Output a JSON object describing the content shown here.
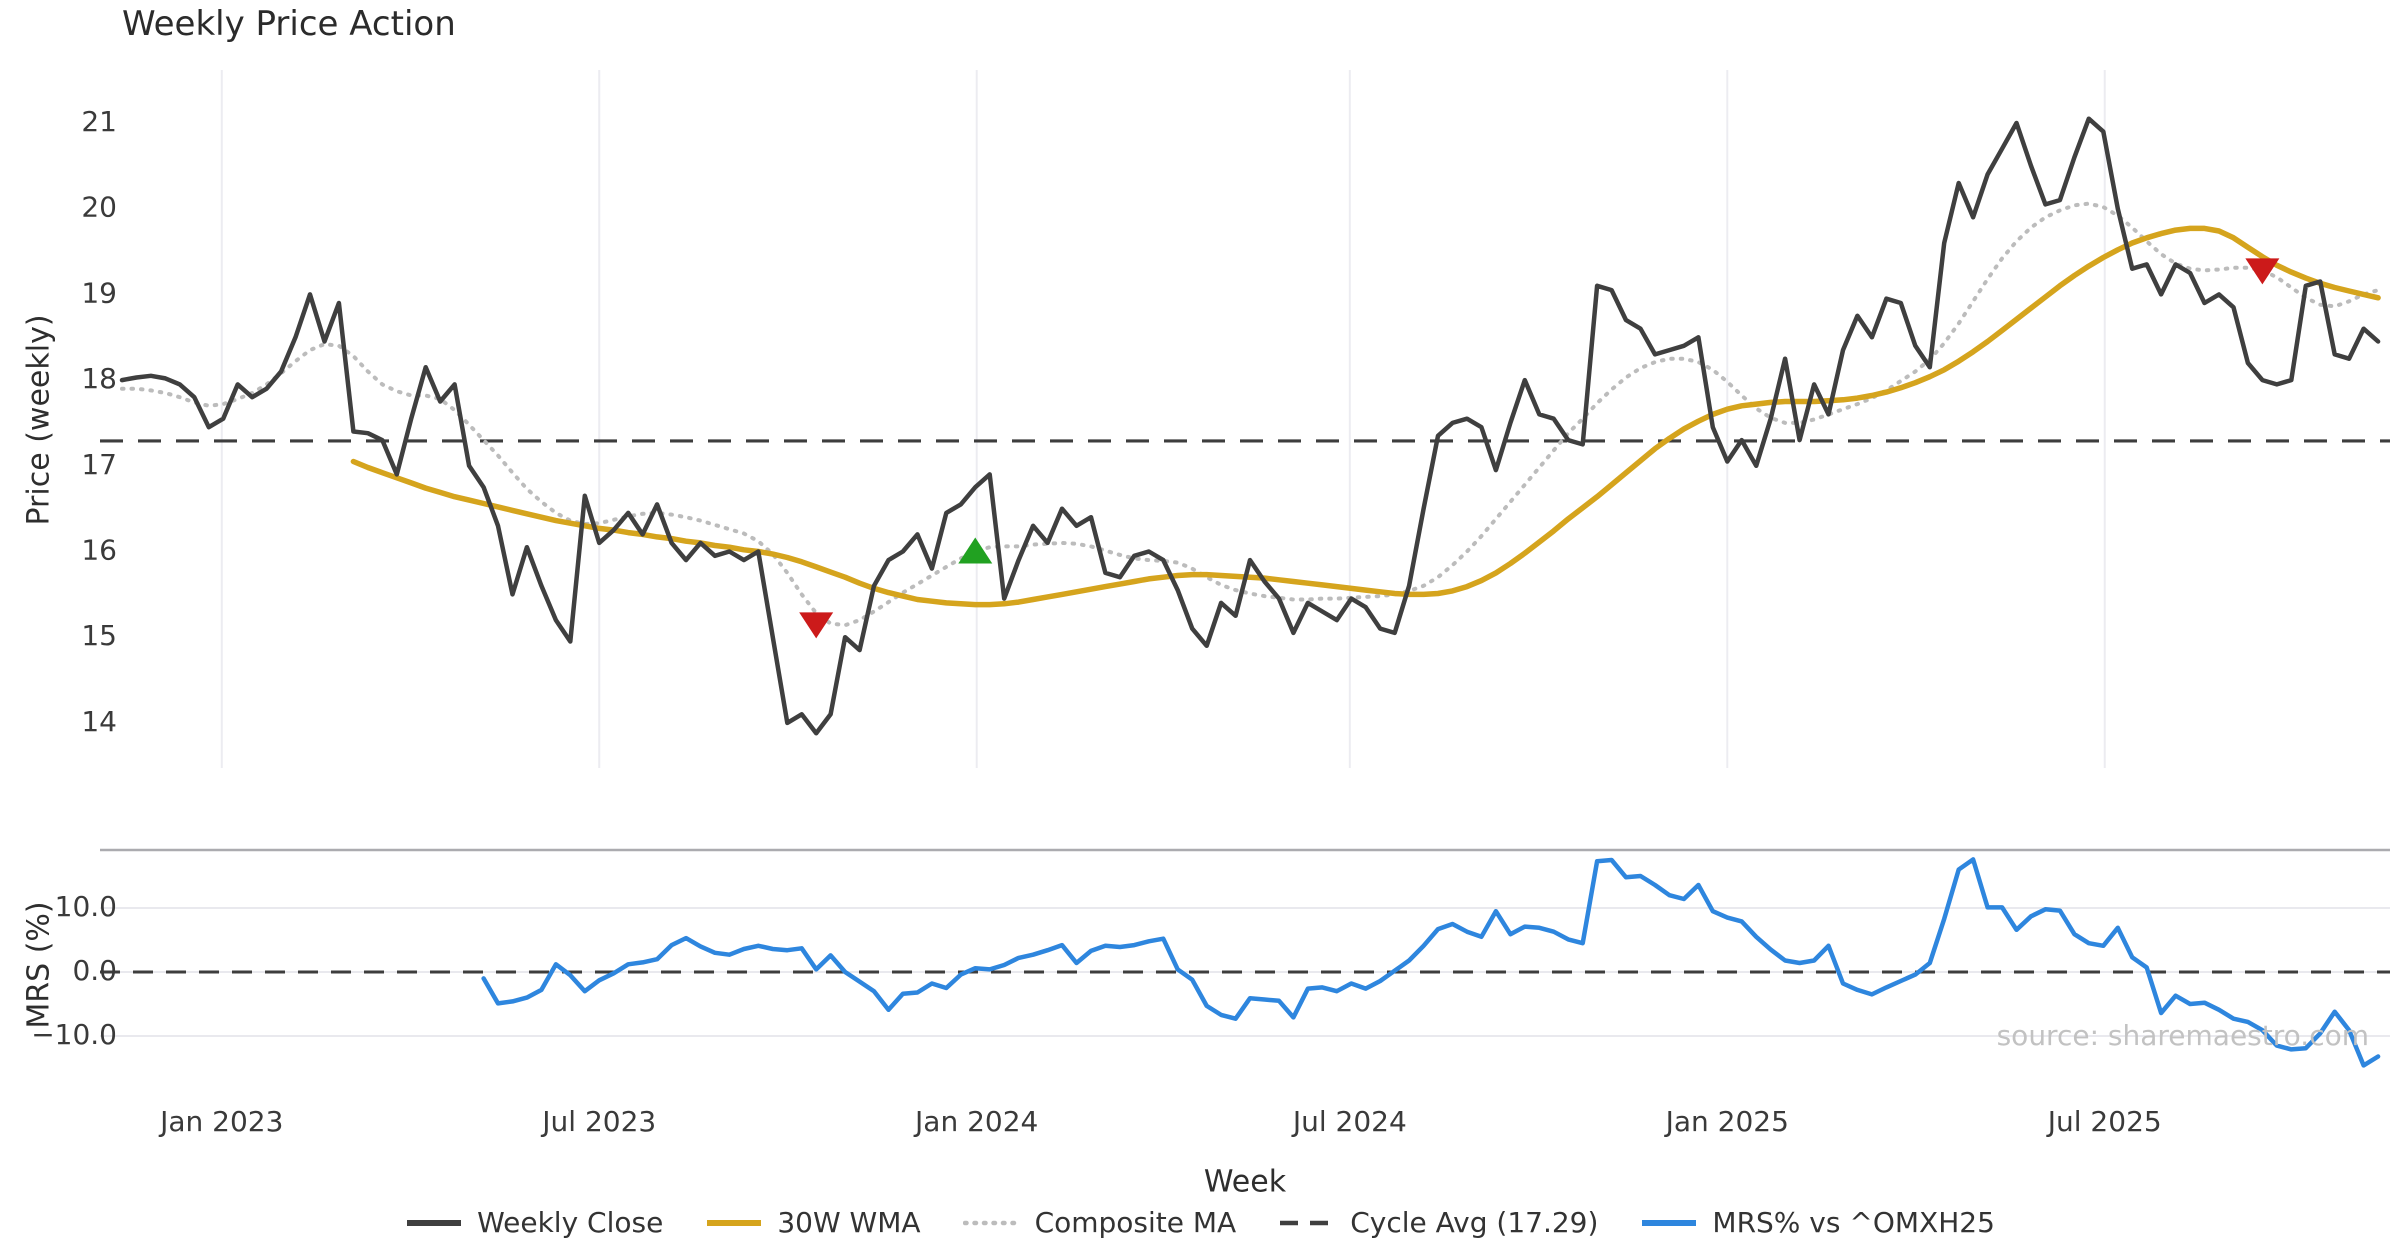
{
  "title": "Weekly Price Action",
  "source_note": "source: sharemaestro.com",
  "axes": {
    "x_label": "Week",
    "price_axis_label": "Price (weekly)",
    "mrs_axis_label": "MRS (%)",
    "price_ticks": [
      "21",
      "20",
      "19",
      "18",
      "17",
      "16",
      "15",
      "14"
    ],
    "price_tick_values": [
      21,
      20,
      19,
      18,
      17,
      16,
      15,
      14
    ],
    "mrs_ticks": [
      "10.0",
      "0.0",
      "−10.0"
    ],
    "mrs_tick_values": [
      10,
      0,
      -10
    ],
    "x_ticks": [
      "Jan 2023",
      "Jul 2023",
      "Jan 2024",
      "Jul 2024",
      "Jan 2025",
      "Jul 2025"
    ],
    "x_tick_weeks": [
      6.9,
      33.0,
      59.1,
      84.9,
      111.0,
      137.1
    ]
  },
  "legend": [
    {
      "label": "Weekly Close",
      "swatch": "solid",
      "color": "#3f3f3f"
    },
    {
      "label": "30W WMA",
      "swatch": "solid",
      "color": "#d5a41d"
    },
    {
      "label": "Composite MA",
      "swatch": "dotted",
      "color": "#bcbcbc"
    },
    {
      "label": "Cycle Avg (17.29)",
      "swatch": "dashed",
      "color": "#3f3f3f"
    },
    {
      "label": "MRS% vs ^OMXH25",
      "swatch": "solid",
      "color": "#2e86de"
    }
  ],
  "chart_data": {
    "type": "line",
    "title": "Weekly Price Action",
    "xlabel": "Week",
    "x_unit": "week index (weekly data, ~Nov 2022 to ~Nov 2025)",
    "grid": "vertical month gridlines on price panel, horizontal gridlines on MRS panel",
    "legend_position": "bottom center",
    "panels": [
      {
        "name": "price",
        "ylabel": "Price (weekly)",
        "ylim": [
          13.5,
          21.6
        ],
        "yticks": [
          21,
          20,
          19,
          18,
          17,
          16,
          15,
          14
        ],
        "cycle_avg": 17.29,
        "series": [
          {
            "name": "Weekly Close",
            "color": "#3f3f3f",
            "style": "solid",
            "start_week": 0,
            "values": [
              18.0,
              18.03,
              18.05,
              18.02,
              17.95,
              17.8,
              17.45,
              17.55,
              17.95,
              17.8,
              17.9,
              18.1,
              18.5,
              19.0,
              18.45,
              18.9,
              17.4,
              17.38,
              17.3,
              16.9,
              17.55,
              18.15,
              17.75,
              17.95,
              17.0,
              16.75,
              16.3,
              15.5,
              16.05,
              15.6,
              15.2,
              14.95,
              16.65,
              16.1,
              16.25,
              16.45,
              16.2,
              16.55,
              16.1,
              15.9,
              16.1,
              15.95,
              16.0,
              15.9,
              16.0,
              15.0,
              14.0,
              14.1,
              13.88,
              14.1,
              15.0,
              14.85,
              15.6,
              15.9,
              16.0,
              16.2,
              15.8,
              16.45,
              16.55,
              16.75,
              16.9,
              15.45,
              15.9,
              16.3,
              16.1,
              16.5,
              16.3,
              16.4,
              15.75,
              15.7,
              15.95,
              16.0,
              15.9,
              15.55,
              15.1,
              14.9,
              15.4,
              15.25,
              15.9,
              15.65,
              15.45,
              15.05,
              15.4,
              15.3,
              15.2,
              15.45,
              15.35,
              15.1,
              15.05,
              15.6,
              16.5,
              17.35,
              17.5,
              17.55,
              17.45,
              16.95,
              17.5,
              18.0,
              17.6,
              17.55,
              17.3,
              17.25,
              19.1,
              19.05,
              18.7,
              18.6,
              18.3,
              18.35,
              18.4,
              18.5,
              17.45,
              17.05,
              17.3,
              17.0,
              17.55,
              18.25,
              17.3,
              17.95,
              17.6,
              18.35,
              18.75,
              18.5,
              18.95,
              18.9,
              18.4,
              18.15,
              19.6,
              20.3,
              19.9,
              20.4,
              20.7,
              21.0,
              20.5,
              20.05,
              20.1,
              20.6,
              21.05,
              20.9,
              20.0,
              19.3,
              19.35,
              19.0,
              19.35,
              19.25,
              18.9,
              19.0,
              18.85,
              18.2,
              18.0,
              17.95,
              18.0,
              19.1,
              19.15,
              18.3,
              18.25,
              18.6,
              18.45
            ]
          },
          {
            "name": "30W WMA",
            "color": "#d5a41d",
            "style": "solid",
            "start_week": 16,
            "values": [
              17.05,
              16.98,
              16.92,
              16.86,
              16.8,
              16.74,
              16.69,
              16.64,
              16.6,
              16.56,
              16.52,
              16.48,
              16.44,
              16.4,
              16.36,
              16.33,
              16.3,
              16.27,
              16.25,
              16.22,
              16.2,
              16.17,
              16.15,
              16.12,
              16.1,
              16.07,
              16.05,
              16.02,
              16.0,
              15.97,
              15.93,
              15.88,
              15.82,
              15.76,
              15.7,
              15.63,
              15.57,
              15.52,
              15.48,
              15.44,
              15.42,
              15.4,
              15.39,
              15.38,
              15.38,
              15.39,
              15.41,
              15.44,
              15.47,
              15.5,
              15.53,
              15.56,
              15.59,
              15.62,
              15.65,
              15.68,
              15.7,
              15.72,
              15.73,
              15.73,
              15.72,
              15.71,
              15.7,
              15.69,
              15.67,
              15.65,
              15.63,
              15.61,
              15.59,
              15.57,
              15.55,
              15.53,
              15.51,
              15.5,
              15.5,
              15.51,
              15.54,
              15.59,
              15.66,
              15.75,
              15.86,
              15.98,
              16.11,
              16.24,
              16.38,
              16.51,
              16.64,
              16.78,
              16.92,
              17.06,
              17.2,
              17.32,
              17.43,
              17.52,
              17.6,
              17.66,
              17.7,
              17.72,
              17.74,
              17.75,
              17.75,
              17.75,
              17.76,
              17.77,
              17.79,
              17.82,
              17.86,
              17.91,
              17.97,
              18.04,
              18.12,
              18.22,
              18.33,
              18.45,
              18.58,
              18.71,
              18.84,
              18.97,
              19.1,
              19.22,
              19.33,
              19.43,
              19.52,
              19.6,
              19.66,
              19.71,
              19.75,
              19.77,
              19.77,
              19.74,
              19.66,
              19.55,
              19.44,
              19.34,
              19.26,
              19.19,
              19.13,
              19.08,
              19.04,
              19.0,
              18.96
            ]
          },
          {
            "name": "Composite MA",
            "color": "#bcbcbc",
            "style": "dotted",
            "start_week": 0,
            "values": [
              17.9,
              17.9,
              17.88,
              17.85,
              17.8,
              17.74,
              17.7,
              17.72,
              17.78,
              17.85,
              17.95,
              18.08,
              18.22,
              18.35,
              18.42,
              18.4,
              18.28,
              18.1,
              17.95,
              17.87,
              17.82,
              17.82,
              17.78,
              17.65,
              17.48,
              17.3,
              17.12,
              16.92,
              16.73,
              16.58,
              16.45,
              16.36,
              16.32,
              16.33,
              16.37,
              16.41,
              16.44,
              16.45,
              16.43,
              16.4,
              16.36,
              16.31,
              16.26,
              16.21,
              16.12,
              15.97,
              15.75,
              15.5,
              15.28,
              15.16,
              15.14,
              15.2,
              15.3,
              15.41,
              15.52,
              15.62,
              15.72,
              15.82,
              15.92,
              16.0,
              16.05,
              16.06,
              16.06,
              16.08,
              16.09,
              16.1,
              16.09,
              16.06,
              16.01,
              15.96,
              15.92,
              15.9,
              15.89,
              15.87,
              15.8,
              15.7,
              15.61,
              15.55,
              15.51,
              15.48,
              15.46,
              15.44,
              15.44,
              15.45,
              15.45,
              15.46,
              15.47,
              15.48,
              15.5,
              15.54,
              15.6,
              15.7,
              15.84,
              16.0,
              16.18,
              16.38,
              16.58,
              16.78,
              16.98,
              17.18,
              17.38,
              17.55,
              17.73,
              17.89,
              18.03,
              18.14,
              18.21,
              18.25,
              18.25,
              18.21,
              18.12,
              17.98,
              17.82,
              17.67,
              17.56,
              17.5,
              17.5,
              17.54,
              17.6,
              17.66,
              17.72,
              17.79,
              17.88,
              17.99,
              18.1,
              18.24,
              18.43,
              18.66,
              18.92,
              19.18,
              19.42,
              19.62,
              19.78,
              19.9,
              19.98,
              20.04,
              20.06,
              20.02,
              19.92,
              19.78,
              19.62,
              19.47,
              19.36,
              19.3,
              19.28,
              19.29,
              19.31,
              19.31,
              19.28,
              19.2,
              19.08,
              18.96,
              18.88,
              18.86,
              18.92,
              19.0,
              19.05
            ]
          }
        ],
        "cycle_avg_line": {
          "name": "Cycle Avg (17.29)",
          "value": 17.29,
          "color": "#3d3d3d",
          "style": "dashed"
        },
        "markers": [
          {
            "week": 48,
            "price": 15.15,
            "shape": "triangle-down",
            "color": "#cc1a1a",
            "meaning": "sell signal"
          },
          {
            "week": 59,
            "price": 16.0,
            "shape": "triangle-up",
            "color": "#21a121",
            "meaning": "buy signal"
          },
          {
            "week": 148,
            "price": 19.28,
            "shape": "triangle-down",
            "color": "#cc1a1a",
            "meaning": "sell signal"
          }
        ]
      },
      {
        "name": "mrs",
        "ylabel": "MRS (%)",
        "ylim": [
          -16.5,
          19.0
        ],
        "yticks": [
          10,
          0,
          -10
        ],
        "zero_line_dashed": true,
        "series": [
          {
            "name": "MRS% vs ^OMXH25",
            "color": "#2e86de",
            "style": "solid",
            "start_week": 25,
            "values": [
              -1.0,
              -4.9,
              -4.6,
              -4.0,
              -2.8,
              1.2,
              -0.5,
              -3.0,
              -1.3,
              -0.2,
              1.2,
              1.5,
              2.0,
              4.2,
              5.3,
              4.0,
              3.0,
              2.7,
              3.6,
              4.1,
              3.6,
              3.4,
              3.7,
              0.4,
              2.6,
              0.0,
              -1.5,
              -3.0,
              -5.9,
              -3.4,
              -3.2,
              -1.8,
              -2.5,
              -0.4,
              0.6,
              0.4,
              1.1,
              2.2,
              2.7,
              3.4,
              4.2,
              1.4,
              3.3,
              4.1,
              3.9,
              4.2,
              4.8,
              5.2,
              0.4,
              -1.2,
              -5.3,
              -6.7,
              -7.3,
              -4.1,
              -4.3,
              -4.5,
              -7.1,
              -2.6,
              -2.4,
              -3.0,
              -1.8,
              -2.6,
              -1.4,
              0.2,
              1.8,
              4.1,
              6.7,
              7.5,
              6.3,
              5.5,
              9.5,
              5.9,
              7.1,
              6.9,
              6.3,
              5.1,
              4.5,
              17.3,
              17.5,
              14.8,
              15.0,
              13.6,
              12.0,
              11.4,
              13.6,
              9.5,
              8.5,
              7.9,
              5.5,
              3.5,
              1.8,
              1.4,
              1.8,
              4.1,
              -1.8,
              -2.8,
              -3.5,
              -2.4,
              -1.4,
              -0.4,
              1.4,
              8.3,
              16.0,
              17.6,
              10.1,
              10.1,
              6.6,
              8.7,
              9.8,
              9.6,
              5.9,
              4.5,
              4.1,
              6.9,
              2.3,
              0.7,
              -6.4,
              -3.7,
              -5.0,
              -4.8,
              -5.9,
              -7.3,
              -7.8,
              -9.1,
              -11.5,
              -12.1,
              -11.9,
              -9.6,
              -6.2,
              -9.1,
              -14.6,
              -13.2
            ]
          }
        ]
      }
    ],
    "x_ticks": [
      {
        "week": 6.9,
        "label": "Jan 2023"
      },
      {
        "week": 33.0,
        "label": "Jul 2023"
      },
      {
        "week": 59.1,
        "label": "Jan 2024"
      },
      {
        "week": 84.9,
        "label": "Jul 2024"
      },
      {
        "week": 111.0,
        "label": "Jan 2025"
      },
      {
        "week": 137.1,
        "label": "Jul 2025"
      }
    ]
  }
}
